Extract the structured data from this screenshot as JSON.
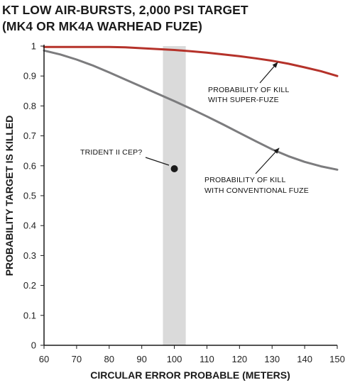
{
  "chart_data": {
    "type": "line",
    "title_lines": [
      "KT LOW AIR-BURSTS, 2,000 PSI TARGET",
      "(MK4 OR MK4A WARHEAD FUZE)"
    ],
    "xlabel": "CIRCULAR ERROR PROBABLE (METERS)",
    "ylabel": "PROBABILITY TARGET IS KILLED",
    "xlim": [
      60,
      150
    ],
    "ylim": [
      0,
      1
    ],
    "x_ticks": [
      60,
      70,
      80,
      90,
      100,
      110,
      120,
      130,
      140,
      150
    ],
    "y_ticks": [
      0,
      0.1,
      0.2,
      0.3,
      0.4,
      0.5,
      0.6,
      0.7,
      0.8,
      0.9,
      1
    ],
    "grid": false,
    "shaded_band": {
      "x_range": [
        96.5,
        103.5
      ],
      "color": "#dadada"
    },
    "series": [
      {
        "key": "super",
        "color": "#b5322a",
        "x": [
          60,
          70,
          80,
          85,
          90,
          95,
          100,
          105,
          110,
          115,
          120,
          125,
          130,
          135,
          140,
          145,
          150
        ],
        "y": [
          0.997,
          0.997,
          0.997,
          0.996,
          0.993,
          0.99,
          0.987,
          0.983,
          0.978,
          0.972,
          0.966,
          0.959,
          0.951,
          0.941,
          0.929,
          0.916,
          0.9
        ]
      },
      {
        "key": "conventional",
        "color": "#7c7c7e",
        "x": [
          60,
          65,
          70,
          75,
          80,
          85,
          90,
          95,
          100,
          105,
          110,
          115,
          120,
          125,
          130,
          135,
          140,
          145,
          150
        ],
        "y": [
          0.985,
          0.972,
          0.955,
          0.935,
          0.912,
          0.888,
          0.864,
          0.84,
          0.816,
          0.791,
          0.765,
          0.738,
          0.71,
          0.682,
          0.655,
          0.632,
          0.613,
          0.598,
          0.587
        ]
      }
    ],
    "point": {
      "label": "TRIDENT II CEP?",
      "x": 100,
      "y": 0.59
    },
    "annotations": {
      "super_label": [
        "PROBABILITY OF KILL",
        "WITH SUPER-FUZE"
      ],
      "conventional_label": [
        "PROBABILITY OF KILL",
        "WITH CONVENTIONAL FUZE"
      ]
    }
  },
  "colors": {
    "axis": "#1a1a1a",
    "point": "#1a1a1a",
    "arrow": "#1a1a1a"
  }
}
